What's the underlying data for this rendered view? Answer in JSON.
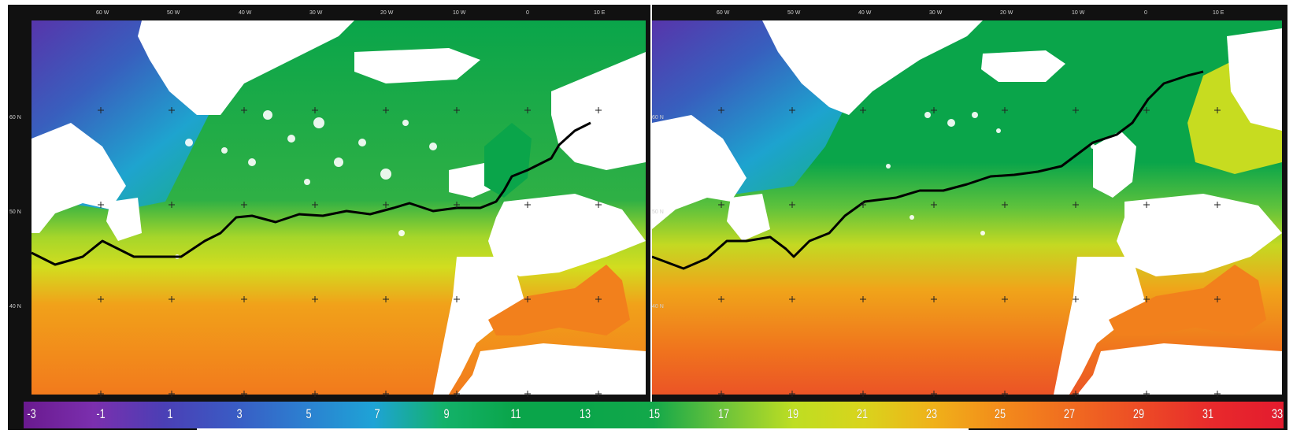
{
  "maps": [
    {
      "id": "left",
      "lon_labels": [
        "60 W",
        "50 W",
        "40 W",
        "30 W",
        "20 W",
        "10 W",
        "0",
        "10 E"
      ],
      "lat_labels": [
        "60 N",
        "50 N",
        "40 N"
      ]
    },
    {
      "id": "right",
      "lon_labels": [
        "60 W",
        "50 W",
        "40 W",
        "30 W",
        "20 W",
        "10 W",
        "0",
        "10 E"
      ],
      "lat_labels": [
        "60 N",
        "50 N",
        "40 N"
      ]
    }
  ],
  "colorbar": {
    "ticks": [
      "-3",
      "-1",
      "1",
      "3",
      "5",
      "7",
      "9",
      "11",
      "13",
      "15",
      "17",
      "19",
      "21",
      "23",
      "25",
      "27",
      "29",
      "31",
      "33"
    ],
    "colors": [
      "#6a1a8f",
      "#7b2fae",
      "#4b3fb5",
      "#3a5bc4",
      "#2c7fd0",
      "#1ea3d6",
      "#13b26a",
      "#0aa54a",
      "#0aa54a",
      "#13a84a",
      "#6cc33a",
      "#bede22",
      "#d9d41c",
      "#f0b119",
      "#f38a1b",
      "#f06a20",
      "#ec4a26",
      "#e8292c",
      "#e31b2e"
    ]
  }
}
